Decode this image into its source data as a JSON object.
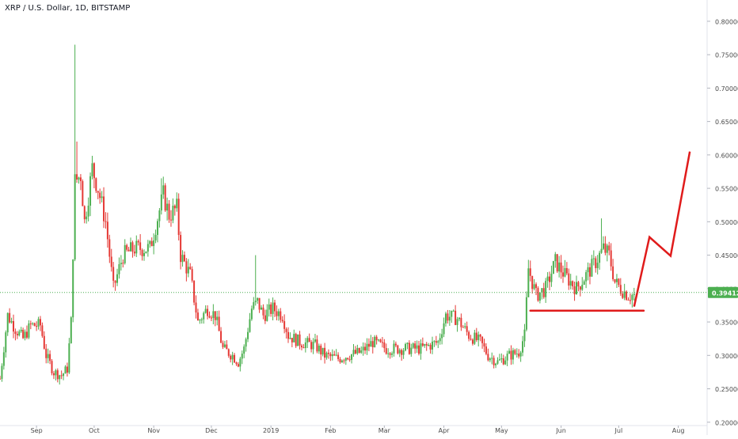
{
  "header": {
    "title": "XRP / U.S. Dollar, 1D, BITSTAMP"
  },
  "chart_data": {
    "type": "candlestick",
    "title": "XRP / U.S. Dollar, 1D, BITSTAMP",
    "y_axis": {
      "position": "right",
      "ticks": [
        "0.20000",
        "0.25000",
        "0.30000",
        "0.35000",
        "0.40000",
        "0.45000",
        "0.50000",
        "0.55000",
        "0.60000",
        "0.65000",
        "0.70000",
        "0.75000",
        "0.80000"
      ],
      "ylim": [
        0.195,
        0.82
      ]
    },
    "x_axis": {
      "labels": [
        {
          "label": "Sep",
          "date": "2018-09-01"
        },
        {
          "label": "Oct",
          "date": "2018-10-01"
        },
        {
          "label": "Nov",
          "date": "2018-11-01"
        },
        {
          "label": "Dec",
          "date": "2018-12-01"
        },
        {
          "label": "2019",
          "date": "2019-01-01"
        },
        {
          "label": "Feb",
          "date": "2019-02-01"
        },
        {
          "label": "Mar",
          "date": "2019-03-01"
        },
        {
          "label": "Apr",
          "date": "2019-04-01"
        },
        {
          "label": "May",
          "date": "2019-05-01"
        },
        {
          "label": "Jun",
          "date": "2019-06-01"
        },
        {
          "label": "Jul",
          "date": "2019-07-01"
        },
        {
          "label": "Aug",
          "date": "2019-08-01"
        }
      ],
      "xlim": [
        "2018-08-13",
        "2019-08-16"
      ]
    },
    "current_price": "0.39412",
    "current_price_value": 0.39412,
    "anchors": [
      [
        "2018-08-13",
        0.265
      ],
      [
        "2018-08-17",
        0.36
      ],
      [
        "2018-08-21",
        0.34
      ],
      [
        "2018-08-25",
        0.325
      ],
      [
        "2018-08-29",
        0.345
      ],
      [
        "2018-09-03",
        0.345
      ],
      [
        "2018-09-06",
        0.3
      ],
      [
        "2018-09-10",
        0.275
      ],
      [
        "2018-09-14",
        0.27
      ],
      [
        "2018-09-17",
        0.28
      ],
      [
        "2018-09-19",
        0.35
      ],
      [
        "2018-09-21",
        0.56
      ],
      [
        "2018-09-24",
        0.57
      ],
      [
        "2018-09-26",
        0.5
      ],
      [
        "2018-09-30",
        0.58
      ],
      [
        "2018-10-03",
        0.55
      ],
      [
        "2018-10-07",
        0.5
      ],
      [
        "2018-10-11",
        0.4
      ],
      [
        "2018-10-16",
        0.45
      ],
      [
        "2018-10-22",
        0.46
      ],
      [
        "2018-10-30",
        0.46
      ],
      [
        "2018-11-06",
        0.54
      ],
      [
        "2018-11-09",
        0.51
      ],
      [
        "2018-11-13",
        0.52
      ],
      [
        "2018-11-15",
        0.45
      ],
      [
        "2018-11-20",
        0.42
      ],
      [
        "2018-11-24",
        0.35
      ],
      [
        "2018-11-29",
        0.37
      ],
      [
        "2018-12-03",
        0.36
      ],
      [
        "2018-12-07",
        0.31
      ],
      [
        "2018-12-12",
        0.3
      ],
      [
        "2018-12-15",
        0.29
      ],
      [
        "2018-12-18",
        0.31
      ],
      [
        "2018-12-22",
        0.37
      ],
      [
        "2018-12-25",
        0.38
      ],
      [
        "2018-12-28",
        0.36
      ],
      [
        "2019-01-02",
        0.37
      ],
      [
        "2019-01-07",
        0.36
      ],
      [
        "2019-01-10",
        0.33
      ],
      [
        "2019-01-16",
        0.32
      ],
      [
        "2019-01-24",
        0.315
      ],
      [
        "2019-01-29",
        0.3
      ],
      [
        "2019-02-05",
        0.295
      ],
      [
        "2019-02-10",
        0.3
      ],
      [
        "2019-02-17",
        0.305
      ],
      [
        "2019-02-23",
        0.32
      ],
      [
        "2019-03-02",
        0.31
      ],
      [
        "2019-03-10",
        0.31
      ],
      [
        "2019-03-20",
        0.31
      ],
      [
        "2019-03-29",
        0.32
      ],
      [
        "2019-04-02",
        0.36
      ],
      [
        "2019-04-08",
        0.355
      ],
      [
        "2019-04-14",
        0.33
      ],
      [
        "2019-04-20",
        0.32
      ],
      [
        "2019-04-24",
        0.3
      ],
      [
        "2019-04-29",
        0.29
      ],
      [
        "2019-05-05",
        0.3
      ],
      [
        "2019-05-10",
        0.305
      ],
      [
        "2019-05-13",
        0.33
      ],
      [
        "2019-05-15",
        0.43
      ],
      [
        "2019-05-19",
        0.39
      ],
      [
        "2019-05-24",
        0.4
      ],
      [
        "2019-05-29",
        0.44
      ],
      [
        "2019-06-03",
        0.42
      ],
      [
        "2019-06-09",
        0.4
      ],
      [
        "2019-06-14",
        0.42
      ],
      [
        "2019-06-19",
        0.44
      ],
      [
        "2019-06-23",
        0.46
      ],
      [
        "2019-06-26",
        0.45
      ],
      [
        "2019-06-29",
        0.41
      ],
      [
        "2019-07-02",
        0.4
      ],
      [
        "2019-07-06",
        0.39
      ],
      [
        "2019-07-09",
        0.39
      ]
    ],
    "annotations": {
      "support_line": {
        "from": [
          "2019-05-16",
          0.367
        ],
        "to": [
          "2019-07-14",
          0.367
        ],
        "color": "#e01b1b"
      },
      "projection_path": [
        [
          "2019-07-09",
          0.373
        ],
        [
          "2019-07-17",
          0.477
        ],
        [
          "2019-07-28",
          0.449
        ],
        [
          "2019-08-07",
          0.605
        ]
      ]
    },
    "colors": {
      "up": "#26a69a",
      "down": "#ef5350",
      "up_candle": "#4caf50",
      "down_candle": "#e53935",
      "price_line": "#4caf50",
      "price_tag_bg": "#4caf50",
      "annotation": "#e01b1b",
      "axis_text": "#4a4a4a",
      "axis_line": "#e0e3eb"
    },
    "grid": false,
    "legend": "none"
  }
}
